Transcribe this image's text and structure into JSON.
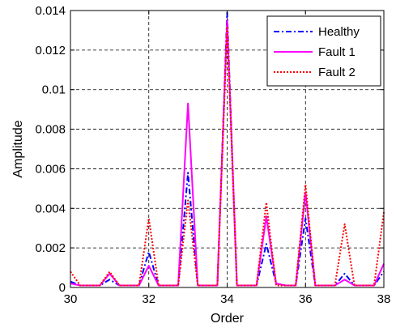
{
  "chart_data": {
    "type": "line",
    "title": "",
    "xlabel": "Order",
    "ylabel": "Amplitude",
    "xlim": [
      30,
      38
    ],
    "ylim": [
      0,
      0.014
    ],
    "xticks": [
      30,
      32,
      34,
      36,
      38
    ],
    "xtick_labels": [
      "30",
      "32",
      "34",
      "36",
      "38"
    ],
    "yticks": [
      0,
      0.002,
      0.004,
      0.006,
      0.008,
      0.01,
      0.012,
      0.014
    ],
    "ytick_labels": [
      "0",
      "0.002",
      "0.004",
      "0.006",
      "0.008",
      "0.01",
      "0.012",
      "0.014"
    ],
    "grid": true,
    "legend_position": "top-right",
    "x": [
      30,
      30.25,
      30.5,
      30.75,
      31,
      31.25,
      31.5,
      31.75,
      32,
      32.25,
      32.5,
      32.75,
      33,
      33.25,
      33.5,
      33.75,
      34,
      34.25,
      34.5,
      34.75,
      35,
      35.25,
      35.5,
      35.75,
      36,
      36.25,
      36.5,
      36.75,
      37,
      37.25,
      37.5,
      37.75,
      38
    ],
    "series": [
      {
        "name": "Healthy",
        "color": "#0000ff",
        "dash": "dashdot",
        "values": [
          0.0003,
          0.0001,
          0.0001,
          0.0001,
          0.0004,
          0.0001,
          0.0001,
          0.0001,
          0.0018,
          0.0001,
          0.0001,
          0.0001,
          0.0058,
          0.0001,
          0.0001,
          0.0001,
          0.0139,
          0.0001,
          0.0001,
          0.0001,
          0.0022,
          0.0002,
          0.0001,
          0.0001,
          0.0035,
          0.0001,
          0.0001,
          0.0001,
          0.0007,
          0.0001,
          0.0001,
          0.0001,
          0.0008
        ]
      },
      {
        "name": "Fault 1",
        "color": "#ff00ff",
        "dash": "solid",
        "values": [
          0.0002,
          0.0001,
          0.0001,
          0.0001,
          0.0007,
          0.0001,
          0.0001,
          0.0001,
          0.0011,
          0.0001,
          0.0001,
          0.0001,
          0.0093,
          0.0001,
          0.0001,
          0.0001,
          0.0135,
          0.0001,
          0.0001,
          0.0001,
          0.0036,
          0.0002,
          0.0001,
          0.0001,
          0.0048,
          0.0001,
          0.0001,
          0.0001,
          0.0004,
          0.0001,
          0.0001,
          0.0001,
          0.0012
        ]
      },
      {
        "name": "Fault 2",
        "color": "#ff0000",
        "dash": "dotted",
        "values": [
          0.0008,
          0.0001,
          0.0001,
          0.0001,
          0.0008,
          0.0001,
          0.0001,
          0.0001,
          0.0035,
          0.0001,
          0.0001,
          0.0001,
          0.0044,
          0.0001,
          0.0001,
          0.0001,
          0.0132,
          0.0001,
          0.0001,
          0.0001,
          0.0043,
          0.0001,
          0.0001,
          0.0001,
          0.0052,
          0.0001,
          0.0001,
          0.0001,
          0.0032,
          0.0001,
          0.0001,
          0.0001,
          0.0038
        ]
      }
    ]
  }
}
